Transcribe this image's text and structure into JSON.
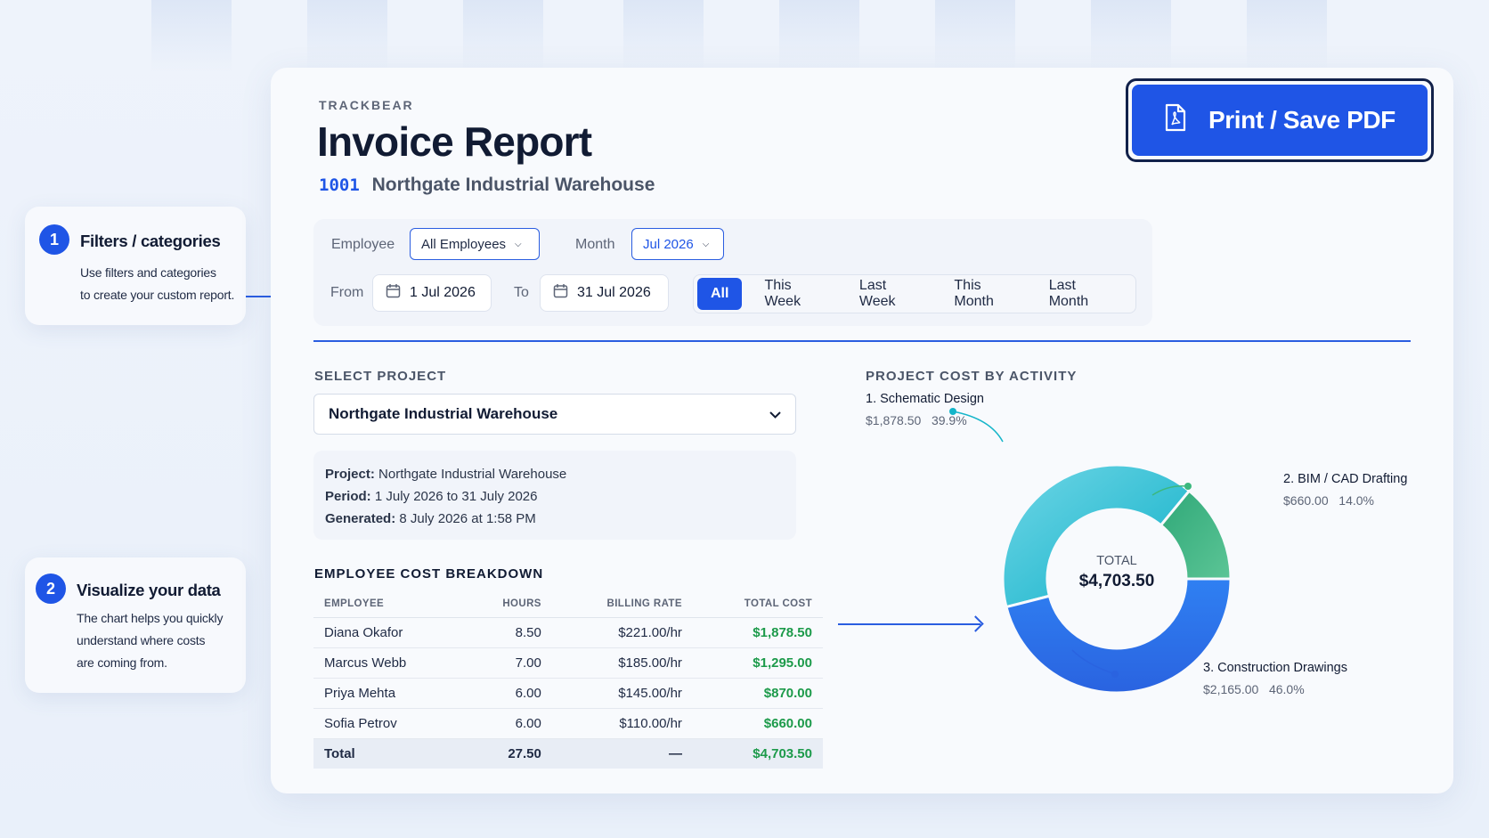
{
  "callouts": [
    {
      "num": "1",
      "title": "Filters / categories",
      "lines": [
        "Use filters and categories",
        "to create your custom report."
      ]
    },
    {
      "num": "2",
      "title": "Visualize your data",
      "lines": [
        "The chart helps you quickly",
        "understand where costs",
        "are coming from."
      ]
    }
  ],
  "header": {
    "brand": "TRACKBEAR",
    "title": "Invoice Report",
    "project_code": "1001",
    "project_name": "Northgate Industrial Warehouse",
    "pdf_label": "Print / Save PDF"
  },
  "filters": {
    "employee_label": "Employee",
    "employee_value": "All Employees",
    "month_label": "Month",
    "month_value": "Jul 2026",
    "from_label": "From",
    "from_value": "1 Jul 2026",
    "to_label": "To",
    "to_value": "31 Jul 2026",
    "ranges": [
      "All",
      "This Week",
      "Last Week",
      "This Month",
      "Last Month"
    ],
    "active_range": "All"
  },
  "project": {
    "section_label": "SELECT PROJECT",
    "selected": "Northgate Industrial Warehouse",
    "info": [
      {
        "key": "Project:",
        "value": "Northgate Industrial Warehouse"
      },
      {
        "key": "Period:",
        "value": "1 July 2026 to 31 July 2026"
      },
      {
        "key": "Generated:",
        "value": "8 July 2026 at 1:58 PM"
      }
    ]
  },
  "breakdown": {
    "section_label": "EMPLOYEE COST BREAKDOWN",
    "columns": [
      "EMPLOYEE",
      "HOURS",
      "BILLING RATE",
      "TOTAL COST"
    ],
    "rows": [
      [
        "Diana Okafor",
        "8.50",
        "$221.00/hr",
        "$1,878.50"
      ],
      [
        "Marcus Webb",
        "7.00",
        "$185.00/hr",
        "$1,295.00"
      ],
      [
        "Priya Mehta",
        "6.00",
        "$145.00/hr",
        "$870.00"
      ],
      [
        "Sofia Petrov",
        "6.00",
        "$110.00/hr",
        "$660.00"
      ]
    ],
    "total": [
      "Total",
      "27.50",
      "—",
      "$4,703.50"
    ]
  },
  "chart_section_label": "PROJECT COST BY ACTIVITY",
  "chart_data": {
    "type": "pie",
    "title": "PROJECT COST BY ACTIVITY",
    "center_label": "TOTAL",
    "center_value": "$4,703.50",
    "categories": [
      "1. Schematic Design",
      "2. BIM / CAD Drafting",
      "3. Construction Drawings"
    ],
    "values": [
      1878.5,
      660.0,
      2165.0
    ],
    "value_labels": [
      "$1,878.50",
      "$660.00",
      "$2,165.00"
    ],
    "percent_labels": [
      "39.9%",
      "14.0%",
      "46.0%"
    ],
    "colors": [
      "#14b5c9",
      "#3bb87e",
      "#2f7cf0"
    ]
  },
  "colors": {
    "accent": "#1f55e6",
    "positive": "#1c9a4a"
  }
}
